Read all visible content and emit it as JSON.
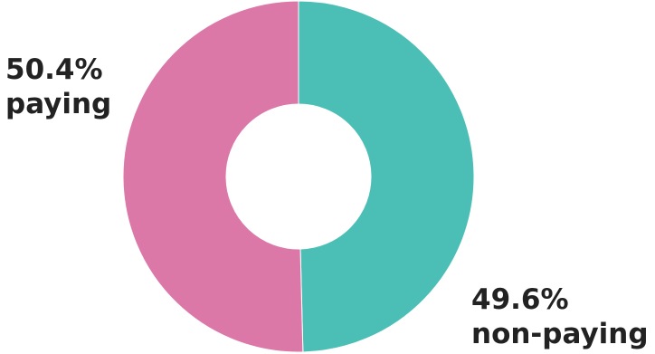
{
  "chart_data": {
    "type": "pie",
    "donut": true,
    "slices": [
      {
        "label": "paying",
        "value": 50.4,
        "percent_text": "50.4%",
        "color": "#db78a8"
      },
      {
        "label": "non-paying",
        "value": 49.6,
        "percent_text": "49.6%",
        "color": "#4bbfb6"
      }
    ],
    "background_color": "#ffffff",
    "label_color": "#222222"
  }
}
